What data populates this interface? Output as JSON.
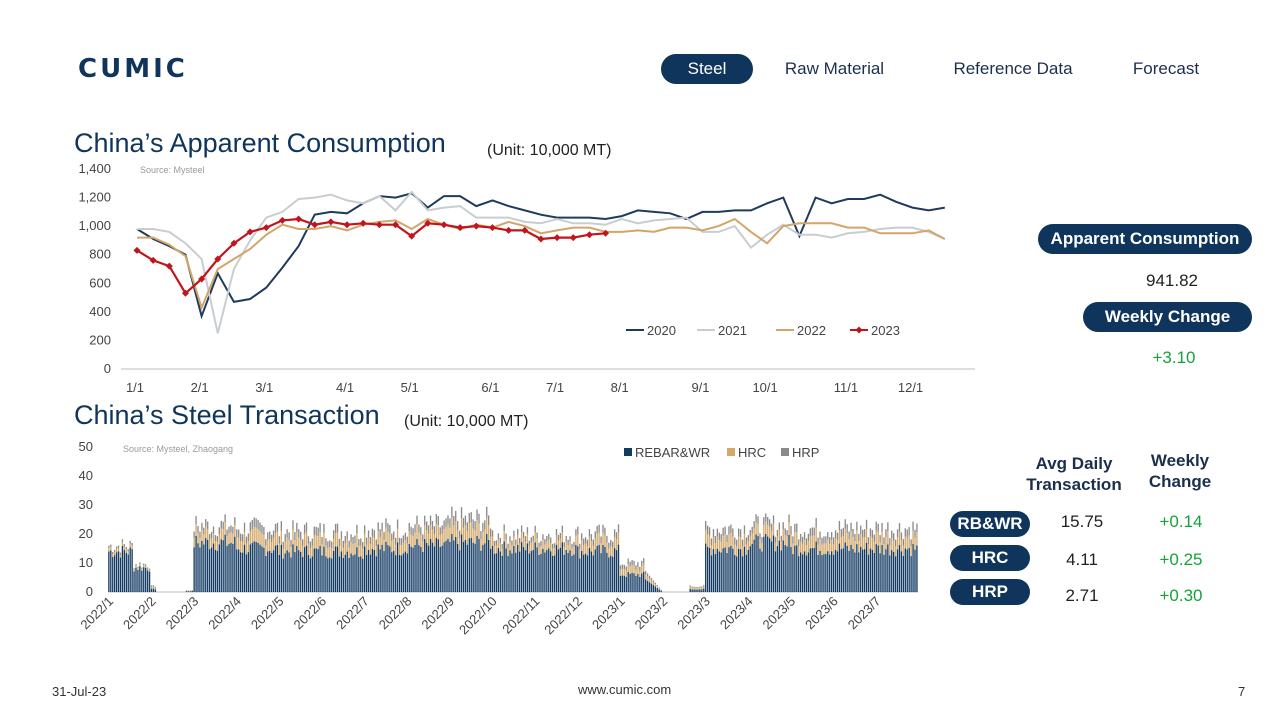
{
  "header": {
    "logo": "CUMIC",
    "nav": [
      "Steel",
      "Raw Material",
      "Reference Data",
      "Forecast"
    ],
    "active": "Steel"
  },
  "consumption": {
    "title": "China’s Apparent Consumption",
    "unit": "(Unit: 10,000 MT)",
    "source": "Source: Mysteel",
    "side": {
      "label1": "Apparent Consumption",
      "value1": "941.82",
      "label2": "Weekly Change",
      "value2": "+3.10"
    }
  },
  "transaction": {
    "title": "China’s Steel Transaction",
    "unit": "(Unit: 10,000 MT)",
    "source": "Source: Mysteel, Zhaogang",
    "table": {
      "col1": [
        "Avg Daily",
        "Transaction"
      ],
      "col2": [
        "Weekly",
        "Change"
      ],
      "rows": [
        {
          "label": "RB&WR",
          "avg": "15.75",
          "chg": "+0.14"
        },
        {
          "label": "HRC",
          "avg": "4.11",
          "chg": "+0.25"
        },
        {
          "label": "HRP",
          "avg": "2.71",
          "chg": "+0.30"
        }
      ]
    }
  },
  "footer": {
    "date": "31-Jul-23",
    "site": "www.cumic.com",
    "page": "7"
  },
  "colors": {
    "navy": "#0f355d",
    "s2020": "#1f3b5c",
    "s2021": "#c8cdd2",
    "s2022": "#d2a56b",
    "s2023": "#c0151d",
    "rebar": "#123a63",
    "hrc": "#d4a96a",
    "hrp": "#8a8a8a",
    "positive": "#14a33a"
  },
  "chart_data": [
    {
      "type": "line",
      "ylim": [
        0,
        1400
      ],
      "yticks": [
        0,
        200,
        400,
        600,
        800,
        1000,
        1200,
        1400
      ],
      "ytick_labels": [
        "0",
        "200",
        "400",
        "600",
        "800",
        "1,000",
        "1,200",
        "1,400"
      ],
      "xticks": [
        0,
        4,
        8,
        13,
        17,
        22,
        26,
        30,
        35,
        39,
        44,
        48
      ],
      "xtick_labels": [
        "1/1",
        "2/1",
        "3/1",
        "4/1",
        "5/1",
        "6/1",
        "7/1",
        "8/1",
        "9/1",
        "10/1",
        "11/1",
        "12/1"
      ],
      "x_unit": "week",
      "legend_position": "bottom-right",
      "series": [
        {
          "name": "2020",
          "values": [
            980,
            910,
            860,
            800,
            370,
            670,
            470,
            490,
            570,
            710,
            860,
            1080,
            1100,
            1090,
            1160,
            1210,
            1200,
            1230,
            1130,
            1210,
            1210,
            1140,
            1180,
            1140,
            1110,
            1080,
            1060,
            1060,
            1060,
            1050,
            1070,
            1110,
            1100,
            1090,
            1050,
            1100,
            1100,
            1110,
            1110,
            1160,
            1200,
            930,
            1200,
            1160,
            1190,
            1190,
            1220,
            1170,
            1130,
            1110,
            1130
          ]
        },
        {
          "name": "2021",
          "values": [
            980,
            980,
            960,
            880,
            770,
            250,
            700,
            900,
            1060,
            1100,
            1190,
            1200,
            1220,
            1180,
            1160,
            1210,
            1110,
            1240,
            1110,
            1130,
            1140,
            1060,
            1060,
            1060,
            1030,
            1020,
            1050,
            1020,
            1020,
            1010,
            1050,
            1020,
            1040,
            1050,
            1060,
            960,
            960,
            1000,
            850,
            940,
            1010,
            940,
            940,
            920,
            950,
            960,
            980,
            990,
            990,
            960,
            910
          ]
        },
        {
          "name": "2022",
          "values": [
            920,
            920,
            870,
            790,
            430,
            700,
            770,
            840,
            940,
            1010,
            980,
            980,
            1000,
            970,
            1010,
            1030,
            1040,
            980,
            1050,
            1010,
            980,
            1010,
            990,
            1030,
            1000,
            950,
            970,
            990,
            990,
            960,
            960,
            970,
            960,
            990,
            990,
            970,
            1000,
            1050,
            960,
            880,
            1000,
            1020,
            1020,
            1020,
            990,
            990,
            950,
            950,
            950,
            970,
            910
          ]
        },
        {
          "name": "2023",
          "values": [
            830,
            760,
            720,
            530,
            630,
            770,
            880,
            960,
            990,
            1040,
            1050,
            1010,
            1030,
            1010,
            1020,
            1010,
            1010,
            930,
            1020,
            1010,
            990,
            1000,
            990,
            970,
            970,
            910,
            920,
            920,
            940,
            950
          ]
        }
      ]
    },
    {
      "type": "bar",
      "stacked": true,
      "ylim": [
        0,
        50
      ],
      "yticks": [
        0,
        10,
        20,
        30,
        40,
        50
      ],
      "xtick_labels": [
        "2022/1",
        "2022/2",
        "2022/3",
        "2022/4",
        "2022/5",
        "2022/6",
        "2022/7",
        "2022/8",
        "2022/9",
        "2022/10",
        "2022/11",
        "2022/12",
        "2023/1",
        "2023/2",
        "2023/3",
        "2023/4",
        "2023/5",
        "2023/6",
        "2023/7"
      ],
      "series_names": [
        "REBAR&WR",
        "HRC",
        "HRP"
      ],
      "legend_position": "top-center",
      "monthly_typical_totals": [
        16,
        2,
        23,
        22,
        21,
        21,
        22,
        23,
        25,
        20,
        20,
        20,
        10,
        2,
        22,
        23,
        22,
        22,
        22
      ],
      "monthly_typical_rebar": [
        14,
        1,
        17,
        15,
        14,
        14,
        15,
        16,
        17,
        15,
        15,
        14,
        6,
        1,
        15,
        17,
        15,
        15,
        15
      ]
    }
  ]
}
